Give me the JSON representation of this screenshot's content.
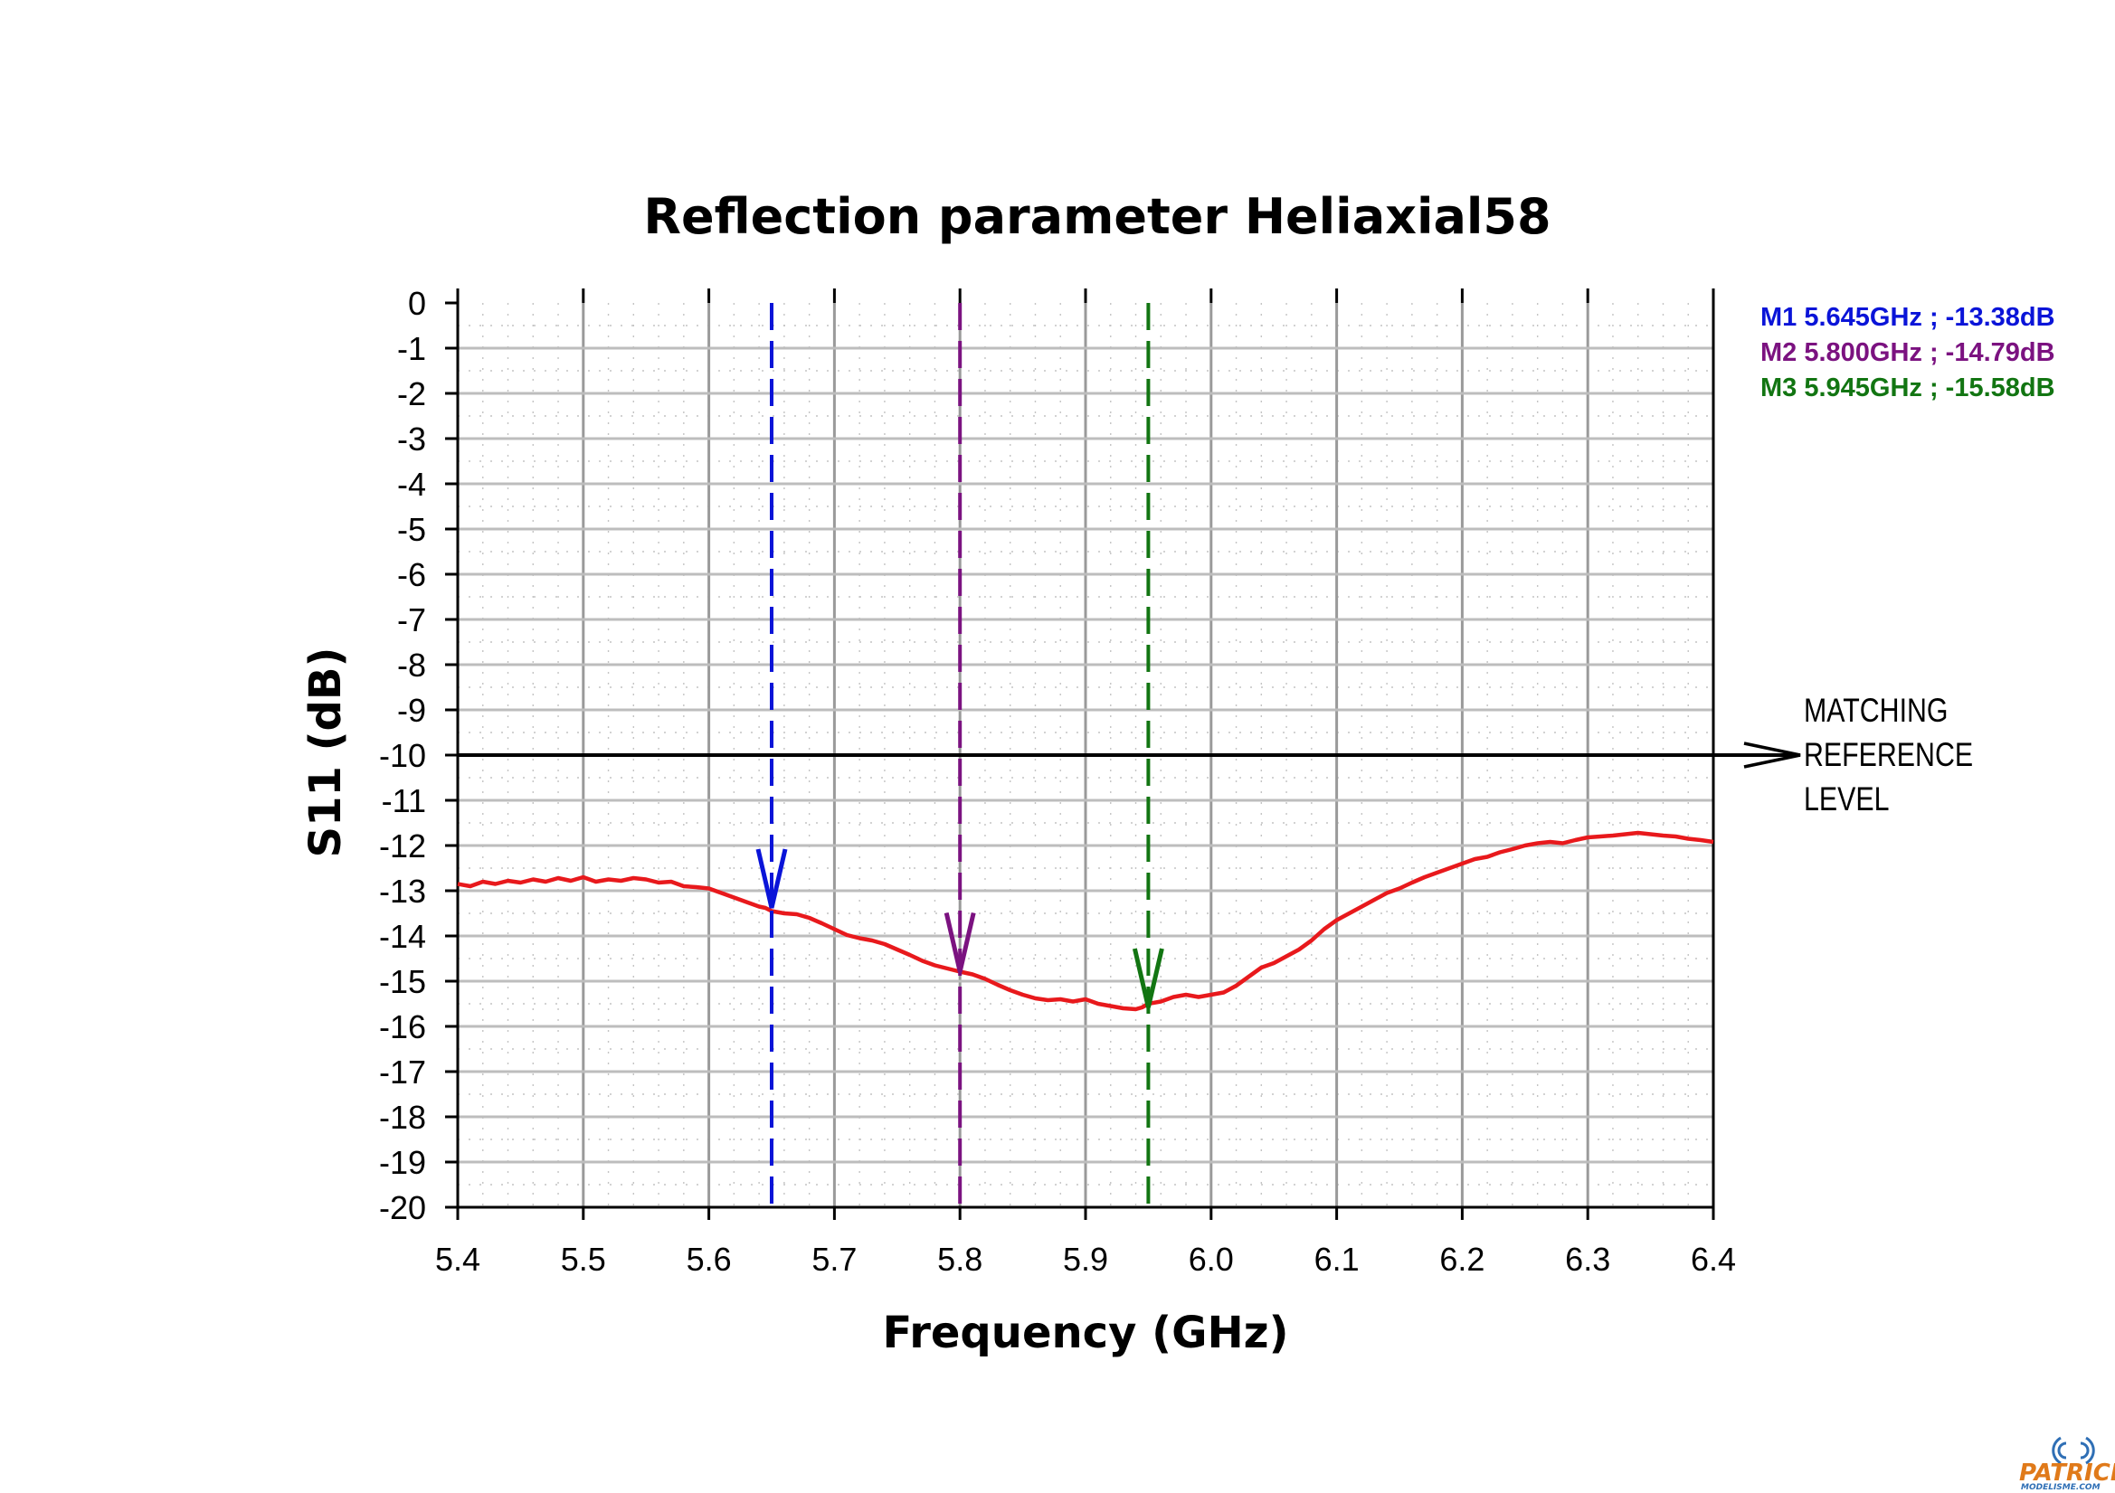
{
  "chart_data": {
    "type": "line",
    "title": "Reflection parameter Heliaxial58",
    "xlabel": "Frequency (GHz)",
    "ylabel": "S11 (dB)",
    "xlim": [
      5.4,
      6.4
    ],
    "ylim": [
      -20,
      0
    ],
    "x_ticks": [
      "5.4",
      "5.5",
      "5.6",
      "5.7",
      "5.8",
      "5.9",
      "6.0",
      "6.1",
      "6.2",
      "6.3",
      "6.4"
    ],
    "y_ticks": [
      "0",
      "-1",
      "-2",
      "-3",
      "-4",
      "-5",
      "-6",
      "-7",
      "-8",
      "-9",
      "-10",
      "-11",
      "-12",
      "-13",
      "-14",
      "-15",
      "-16",
      "-17",
      "-18",
      "-19",
      "-20"
    ],
    "grid": true,
    "series": [
      {
        "color": "#e8191c",
        "x": [
          5.4,
          5.41,
          5.42,
          5.43,
          5.44,
          5.45,
          5.46,
          5.47,
          5.48,
          5.49,
          5.5,
          5.51,
          5.52,
          5.53,
          5.54,
          5.55,
          5.56,
          5.57,
          5.58,
          5.59,
          5.6,
          5.61,
          5.62,
          5.63,
          5.64,
          5.645,
          5.65,
          5.66,
          5.67,
          5.68,
          5.69,
          5.7,
          5.71,
          5.72,
          5.73,
          5.74,
          5.75,
          5.76,
          5.77,
          5.78,
          5.79,
          5.8,
          5.81,
          5.82,
          5.83,
          5.84,
          5.85,
          5.86,
          5.87,
          5.88,
          5.89,
          5.9,
          5.91,
          5.92,
          5.93,
          5.94,
          5.945,
          5.95,
          5.96,
          5.97,
          5.98,
          5.99,
          6.0,
          6.01,
          6.02,
          6.03,
          6.04,
          6.05,
          6.06,
          6.07,
          6.08,
          6.09,
          6.1,
          6.11,
          6.12,
          6.13,
          6.14,
          6.15,
          6.16,
          6.17,
          6.18,
          6.19,
          6.2,
          6.21,
          6.22,
          6.23,
          6.24,
          6.25,
          6.26,
          6.27,
          6.28,
          6.29,
          6.3,
          6.31,
          6.32,
          6.33,
          6.34,
          6.35,
          6.36,
          6.37,
          6.38,
          6.39,
          6.4
        ],
        "values": [
          -12.85,
          -12.9,
          -12.8,
          -12.85,
          -12.78,
          -12.82,
          -12.75,
          -12.8,
          -12.72,
          -12.78,
          -12.7,
          -12.8,
          -12.75,
          -12.78,
          -12.72,
          -12.75,
          -12.82,
          -12.8,
          -12.9,
          -12.92,
          -12.95,
          -13.05,
          -13.15,
          -13.25,
          -13.35,
          -13.38,
          -13.45,
          -13.5,
          -13.52,
          -13.6,
          -13.72,
          -13.85,
          -13.98,
          -14.05,
          -14.1,
          -14.18,
          -14.3,
          -14.42,
          -14.55,
          -14.65,
          -14.72,
          -14.79,
          -14.85,
          -14.95,
          -15.08,
          -15.2,
          -15.3,
          -15.38,
          -15.42,
          -15.4,
          -15.45,
          -15.4,
          -15.5,
          -15.55,
          -15.6,
          -15.62,
          -15.58,
          -15.5,
          -15.45,
          -15.35,
          -15.3,
          -15.35,
          -15.3,
          -15.25,
          -15.1,
          -14.9,
          -14.7,
          -14.6,
          -14.45,
          -14.3,
          -14.1,
          -13.85,
          -13.65,
          -13.5,
          -13.35,
          -13.2,
          -13.05,
          -12.95,
          -12.82,
          -12.7,
          -12.6,
          -12.5,
          -12.4,
          -12.3,
          -12.25,
          -12.15,
          -12.08,
          -12.0,
          -11.95,
          -11.92,
          -11.95,
          -11.88,
          -11.82,
          -11.8,
          -11.78,
          -11.75,
          -11.72,
          -11.75,
          -11.78,
          -11.8,
          -11.85,
          -11.88,
          -11.92
        ]
      }
    ],
    "markers": [
      {
        "id": "M1",
        "x": 5.65,
        "y": -13.38,
        "color": "#0a14d8",
        "label": "M1 5.645GHz ; -13.38dB"
      },
      {
        "id": "M2",
        "x": 5.8,
        "y": -14.79,
        "color": "#7b1280",
        "label": "M2 5.800GHz ; -14.79dB"
      },
      {
        "id": "M3",
        "x": 5.95,
        "y": -15.58,
        "color": "#127512",
        "label": "M3 5.945GHz ; -15.58dB"
      }
    ],
    "reference": {
      "y": -10,
      "label_lines": [
        "MATCHING",
        "REFERENCE",
        "LEVEL"
      ]
    }
  },
  "logo": {
    "text_main": "PATRICK",
    "text_sub": "MODELISME.COM"
  }
}
